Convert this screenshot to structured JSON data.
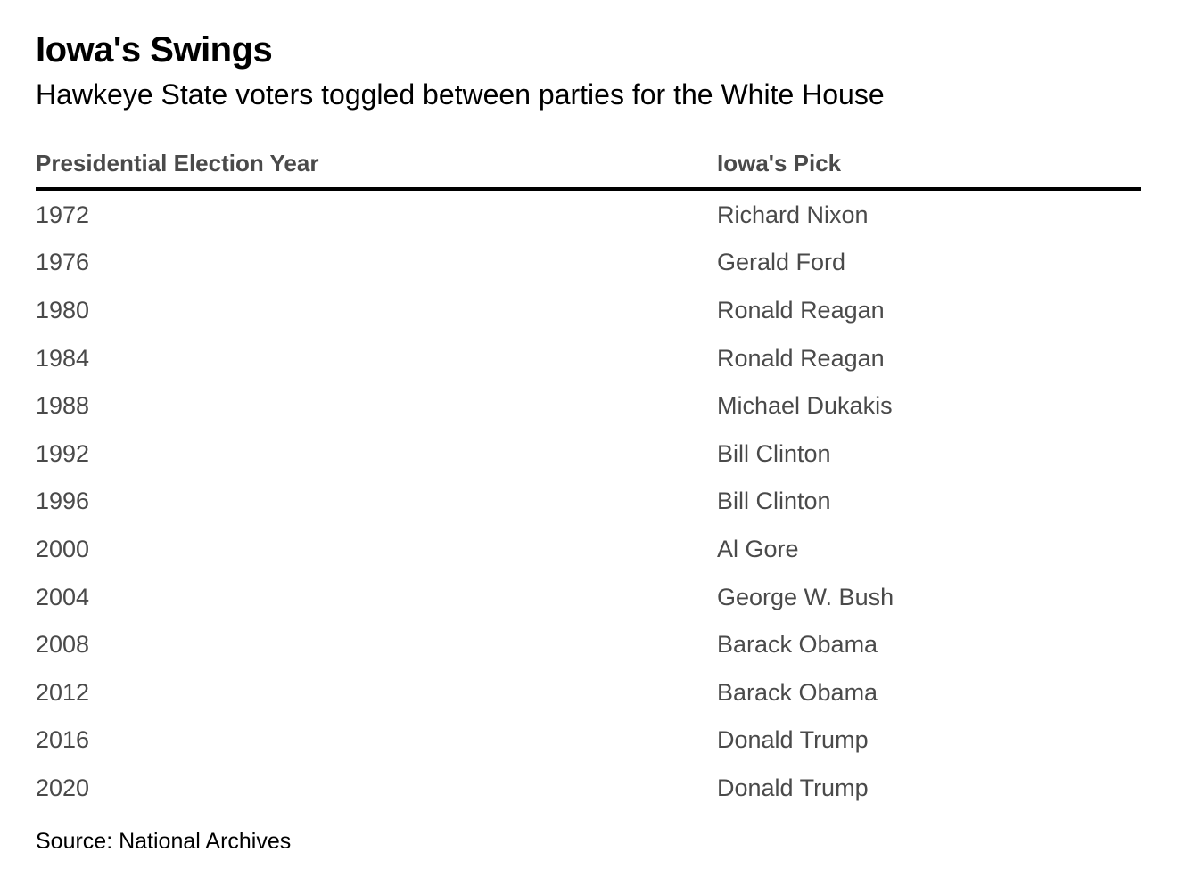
{
  "header": {
    "title": "Iowa's Swings",
    "subtitle": "Hawkeye State voters toggled between parties for the White House"
  },
  "table": {
    "columns": [
      "Presidential Election Year",
      "Iowa's Pick"
    ],
    "rows": [
      [
        "1972",
        "Richard Nixon"
      ],
      [
        "1976",
        "Gerald Ford"
      ],
      [
        "1980",
        "Ronald Reagan"
      ],
      [
        "1984",
        "Ronald Reagan"
      ],
      [
        "1988",
        "Michael Dukakis"
      ],
      [
        "1992",
        "Bill Clinton"
      ],
      [
        "1996",
        "Bill Clinton"
      ],
      [
        "2000",
        "Al Gore"
      ],
      [
        "2004",
        "George W. Bush"
      ],
      [
        "2008",
        "Barack Obama"
      ],
      [
        "2012",
        "Barack Obama"
      ],
      [
        "2016",
        "Donald Trump"
      ],
      [
        "2020",
        "Donald Trump"
      ]
    ]
  },
  "footer": {
    "source": "Source: National Archives"
  },
  "colors": {
    "text_primary": "#000000",
    "text_secondary": "#4a4a4a",
    "rule": "#000000",
    "background": "#ffffff"
  }
}
